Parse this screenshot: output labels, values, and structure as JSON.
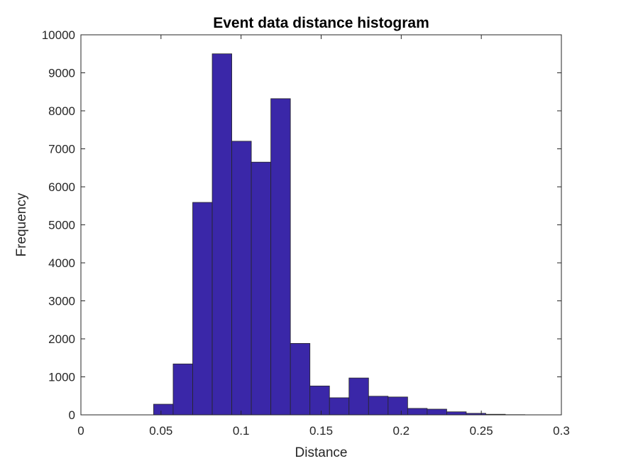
{
  "chart_data": {
    "type": "bar",
    "title": "Event data distance histogram",
    "xlabel": "Distance",
    "ylabel": "Frequency",
    "xlim": [
      0,
      0.3
    ],
    "ylim": [
      0,
      10000
    ],
    "bin_edges": [
      0.0454,
      0.0576,
      0.0698,
      0.082,
      0.0942,
      0.1064,
      0.1186,
      0.1308,
      0.143,
      0.1552,
      0.1674,
      0.1796,
      0.1918,
      0.204,
      0.2162,
      0.2284,
      0.2406,
      0.2528,
      0.265,
      0.2772,
      0.2894
    ],
    "values": [
      280,
      1340,
      5590,
      9500,
      7200,
      6650,
      8320,
      1880,
      760,
      450,
      970,
      490,
      470,
      170,
      150,
      80,
      40,
      15,
      5,
      2
    ],
    "x_ticks": [
      "0",
      "0.05",
      "0.1",
      "0.15",
      "0.2",
      "0.25",
      "0.3"
    ],
    "x_tick_values": [
      0,
      0.05,
      0.1,
      0.15,
      0.2,
      0.25,
      0.3
    ],
    "y_ticks": [
      "0",
      "1000",
      "2000",
      "3000",
      "4000",
      "5000",
      "6000",
      "7000",
      "8000",
      "9000",
      "10000"
    ],
    "y_tick_values": [
      0,
      1000,
      2000,
      3000,
      4000,
      5000,
      6000,
      7000,
      8000,
      9000,
      10000
    ],
    "grid": false,
    "colors": {
      "bar_fill": "#3a27a8",
      "bar_edge": "#262626",
      "axis": "#262626"
    }
  }
}
